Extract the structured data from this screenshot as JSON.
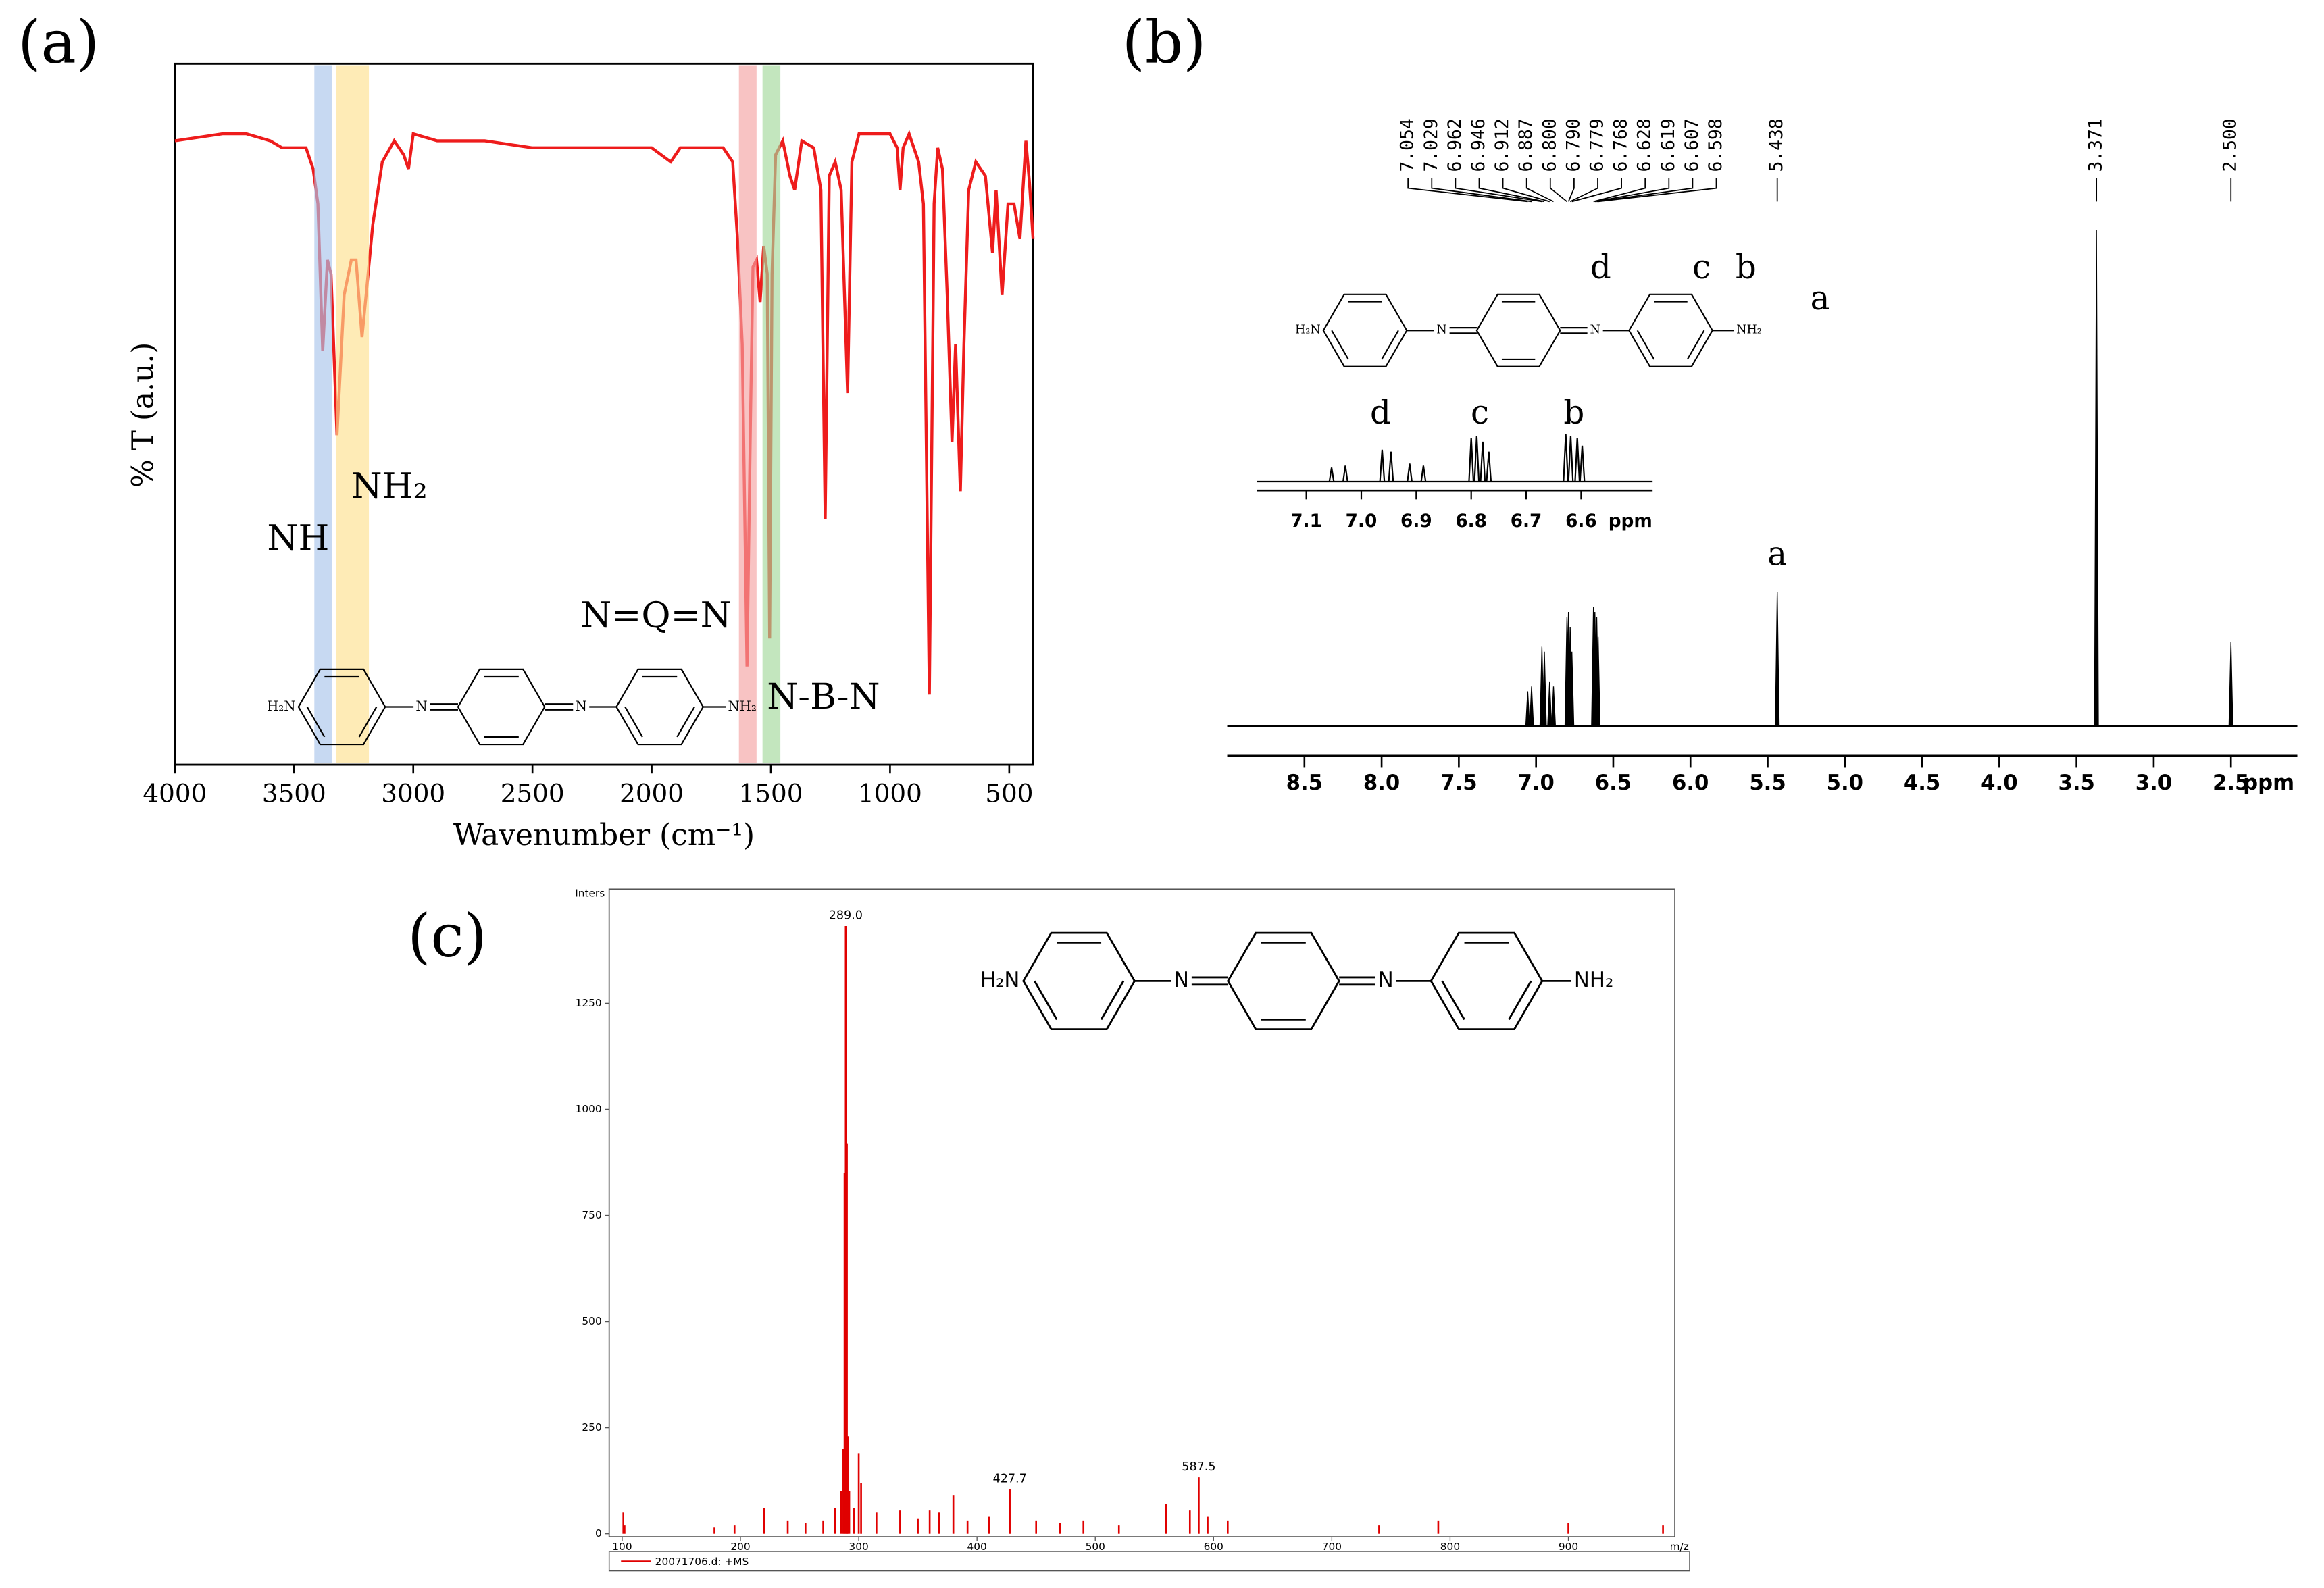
{
  "chart_data": [
    {
      "type": "line",
      "panel": "(a)",
      "xlabel": "Wavenumber (cm⁻¹)",
      "ylabel": "% T (a.u.)",
      "color": "#ee1c1c",
      "x": [
        4000,
        3800,
        3700,
        3600,
        3550,
        3450,
        3420,
        3400,
        3380,
        3360,
        3345,
        3320,
        3290,
        3260,
        3240,
        3215,
        3195,
        3170,
        3130,
        3080,
        3040,
        3020,
        3000,
        2900,
        2700,
        2500,
        2200,
        2000,
        1920,
        1880,
        1800,
        1700,
        1660,
        1640,
        1620,
        1600,
        1585,
        1575,
        1560,
        1545,
        1530,
        1515,
        1505,
        1495,
        1480,
        1450,
        1420,
        1400,
        1370,
        1320,
        1290,
        1272,
        1255,
        1230,
        1205,
        1178,
        1160,
        1130,
        1050,
        1000,
        970,
        958,
        945,
        920,
        880,
        860,
        835,
        815,
        800,
        780,
        760,
        740,
        725,
        705,
        690,
        670,
        640,
        600,
        570,
        555,
        530,
        505,
        480,
        455,
        430,
        415,
        400
      ],
      "values": [
        89,
        90,
        90,
        89,
        88,
        88,
        85,
        80,
        59,
        72,
        70,
        47,
        67,
        72,
        72,
        61,
        68,
        77,
        86,
        89,
        87,
        85,
        90,
        89,
        89,
        88,
        88,
        88,
        86,
        88,
        88,
        88,
        86,
        75,
        60,
        14,
        50,
        71,
        72,
        66,
        74,
        70,
        18,
        70,
        87,
        89,
        84,
        82,
        89,
        88,
        82,
        35,
        84,
        86,
        82,
        53,
        86,
        90,
        90,
        90,
        88,
        82,
        88,
        90,
        86,
        80,
        10,
        80,
        88,
        85,
        67,
        46,
        60,
        39,
        60,
        82,
        86,
        84,
        73,
        82,
        67,
        80,
        80,
        75,
        89,
        83,
        75
      ],
      "xlim": [
        4000,
        400
      ],
      "ylim": [
        0,
        100
      ],
      "xticks": [
        4000,
        3500,
        3000,
        2500,
        2000,
        1500,
        1000,
        500
      ],
      "bands": [
        {
          "label": "NH",
          "from": 3415,
          "to": 3340,
          "color": "#a9c4eb"
        },
        {
          "label": "NH₂",
          "from": 3323,
          "to": 3186,
          "color": "#fde08f"
        },
        {
          "label": "N=Q=N",
          "from": 1634,
          "to": 1560,
          "color": "#f4a3a3"
        },
        {
          "label": "N-B-N",
          "from": 1535,
          "to": 1460,
          "color": "#a3d99b"
        }
      ],
      "structure": [
        "H₂N",
        "N",
        "N",
        "NH₂"
      ]
    },
    {
      "type": "spectrum",
      "panel": "(b)",
      "xlabel": "ppm",
      "color": "#000000",
      "x": [
        7.054,
        7.029,
        6.962,
        6.946,
        6.912,
        6.887,
        6.8,
        6.79,
        6.779,
        6.768,
        6.628,
        6.619,
        6.607,
        6.598,
        5.438,
        3.371,
        2.5
      ],
      "values": [
        7,
        8,
        16,
        15,
        9,
        8,
        22,
        23,
        20,
        15,
        24,
        23,
        22,
        18,
        27,
        100,
        17
      ],
      "x_labels": [
        "7.054",
        "7.029",
        "6.962",
        "6.946",
        "6.912",
        "6.887",
        "6.800",
        "6.790",
        "6.779",
        "6.768",
        "6.628",
        "6.619",
        "6.607",
        "6.598",
        "5.438",
        "3.371",
        "2.500"
      ],
      "xlim": [
        9.0,
        2.07
      ],
      "ylim": [
        0,
        100
      ],
      "xticks": [
        8.5,
        {
          "value": 8,
          "label": "8.0"
        },
        7.5,
        {
          "value": 7,
          "label": "7.0"
        },
        6.5,
        {
          "value": 6,
          "label": "6.0"
        },
        5.5,
        {
          "value": 5,
          "label": "5.0"
        },
        4.5,
        {
          "value": 4,
          "label": "4.0"
        },
        3.5,
        {
          "value": 3,
          "label": "3.0"
        },
        2.5
      ],
      "structure": [
        "H₂N",
        "N",
        "N",
        "NH₂"
      ],
      "structure_labels": [
        "d",
        "c",
        "b",
        "a"
      ],
      "peak_label": "a",
      "inset": {
        "xlim": [
          7.19,
          6.47
        ],
        "ylim": [
          0,
          26
        ],
        "xticks": [
          7.1,
          {
            "value": 7,
            "label": "7.0"
          },
          6.9,
          6.8,
          6.7,
          6.6
        ],
        "xlabel": "ppm",
        "labels": [
          "d",
          "c",
          "b"
        ]
      }
    },
    {
      "type": "stem",
      "panel": "(c)",
      "ylabel": "Inters",
      "xlabel": "m/z",
      "color": "#e00000",
      "name": "20071706.d: +MS",
      "legend": "bottom",
      "x": [
        101,
        102,
        178,
        195,
        220,
        240,
        255,
        270,
        280,
        285,
        287,
        288,
        289.0,
        290,
        291,
        292,
        296,
        300,
        302,
        315,
        335,
        350,
        360,
        368,
        380,
        392,
        410,
        427.7,
        450,
        470,
        490,
        520,
        560,
        580,
        587.5,
        595,
        612,
        740,
        790,
        900,
        980
      ],
      "values": [
        50,
        20,
        15,
        20,
        60,
        30,
        25,
        30,
        60,
        100,
        200,
        850,
        1432,
        920,
        230,
        100,
        60,
        190,
        120,
        50,
        55,
        35,
        55,
        50,
        90,
        30,
        40,
        105,
        30,
        25,
        30,
        20,
        70,
        55,
        133,
        40,
        30,
        20,
        30,
        25,
        20
      ],
      "x_labels": [
        null,
        null,
        null,
        null,
        null,
        null,
        null,
        null,
        null,
        null,
        null,
        null,
        "289.0",
        null,
        null,
        null,
        null,
        null,
        null,
        null,
        null,
        null,
        null,
        null,
        null,
        null,
        null,
        "427.7",
        null,
        null,
        null,
        null,
        null,
        null,
        "587.5",
        null,
        null,
        null,
        null,
        null,
        null
      ],
      "xlim": [
        89,
        990
      ],
      "ylim": [
        0,
        1519
      ],
      "xticks": [
        100,
        200,
        300,
        400,
        500,
        600,
        700,
        800,
        900
      ],
      "yticks": [
        0,
        250,
        500,
        750,
        1000,
        1250
      ],
      "structure": [
        "H₂N",
        "N",
        "N",
        "NH₂"
      ]
    }
  ]
}
